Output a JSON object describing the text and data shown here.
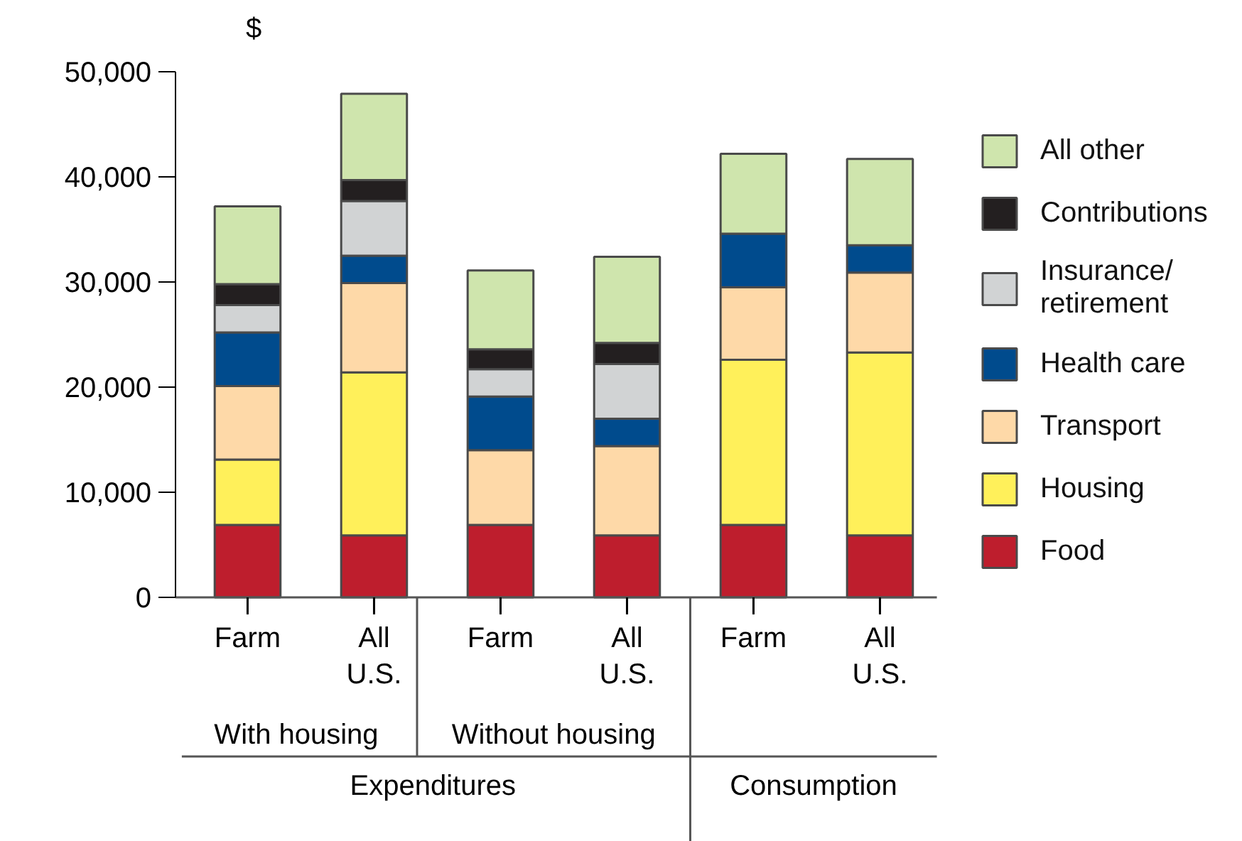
{
  "chart_data": {
    "type": "bar",
    "stacked": true,
    "ylabel": "$",
    "categories": [
      "Farm",
      "All U.S.",
      "Farm",
      "All U.S.",
      "Farm",
      "All U.S."
    ],
    "series": [
      {
        "name": "Food",
        "color": "#be1e2d",
        "values": [
          6900,
          5900,
          6900,
          5900,
          6900,
          5900
        ]
      },
      {
        "name": "Housing",
        "color": "#fff05a",
        "values": [
          6200,
          15500,
          null,
          null,
          15700,
          17400
        ]
      },
      {
        "name": "Transport",
        "color": "#fed9a8",
        "values": [
          7000,
          8500,
          7100,
          8500,
          6900,
          7600
        ]
      },
      {
        "name": "Health care",
        "color": "#004b8d",
        "values": [
          5100,
          2600,
          5100,
          2600,
          5100,
          2600
        ]
      },
      {
        "name": "Insurance/ retirement",
        "color": "#d1d3d4",
        "values": [
          2600,
          5200,
          2600,
          5200,
          null,
          null
        ]
      },
      {
        "name": "Contributions",
        "color": "#231f20",
        "values": [
          2000,
          2000,
          1900,
          2000,
          null,
          null
        ]
      },
      {
        "name": "All other",
        "color": "#cfe5ad",
        "values": [
          7400,
          8200,
          7500,
          8200,
          7600,
          8200
        ]
      }
    ],
    "ylim": [
      0,
      50000
    ],
    "yticks": [
      0,
      {
        "value": 10000,
        "label": "10,000"
      },
      {
        "value": 20000,
        "label": "20,000"
      },
      {
        "value": 30000,
        "label": "30,000"
      },
      {
        "value": 40000,
        "label": "40,000"
      },
      {
        "value": 50000,
        "label": "50,000"
      }
    ],
    "grid": false,
    "legend": "right",
    "annotations": [
      "With housing",
      "Without housing",
      "Expenditures",
      "Consumption"
    ]
  }
}
